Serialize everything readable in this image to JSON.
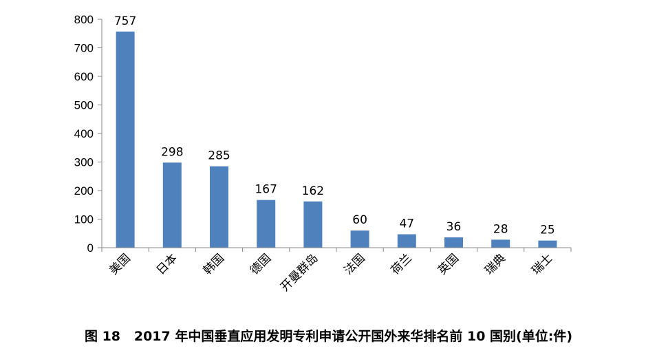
{
  "chart_data": {
    "type": "bar",
    "categories": [
      "美国",
      "日本",
      "韩国",
      "德国",
      "开曼群岛",
      "法国",
      "荷兰",
      "英国",
      "瑞典",
      "瑞士"
    ],
    "values": [
      757,
      298,
      285,
      167,
      162,
      60,
      47,
      36,
      28,
      25
    ],
    "ylim": [
      0,
      800
    ],
    "yticks": [
      0,
      100,
      200,
      300,
      400,
      500,
      600,
      700,
      800
    ],
    "bar_color": "#4f81bd",
    "grid": false,
    "legend": false
  },
  "caption": "图 18   2017 年中国垂直应用发明专利申请公开国外来华排名前 10 国别(单位:件)"
}
